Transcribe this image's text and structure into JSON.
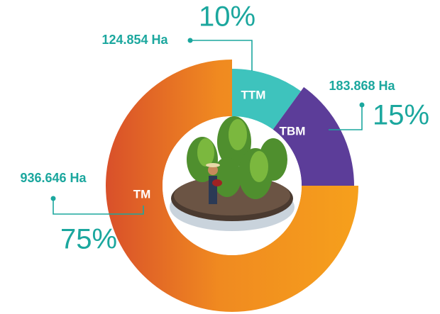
{
  "chart_data": {
    "type": "donut",
    "categories": [
      "TTM",
      "TBM",
      "TM"
    ],
    "values": [
      10,
      15,
      75
    ],
    "value_labels": [
      "10%",
      "15%",
      "75%"
    ],
    "area_labels": [
      "124.854 Ha",
      "183.868 Ha",
      "936.646 Ha"
    ],
    "colors": [
      "#3ec3bd",
      "#5c3d99",
      "#f0901f"
    ]
  }
}
